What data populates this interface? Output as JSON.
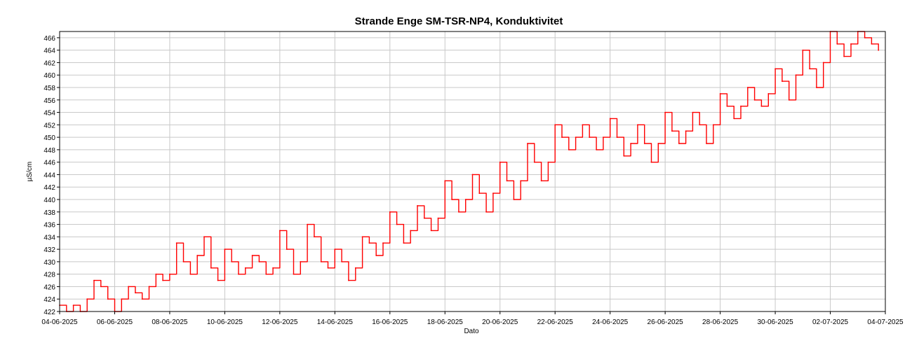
{
  "chart_data": {
    "type": "line",
    "title": "Strande Enge SM-TSR-NP4, Konduktivitet",
    "xlabel": "Dato",
    "ylabel": "µS/cm",
    "x_range": [
      "04-06-2025",
      "04-07-2025"
    ],
    "ylim": [
      422,
      467
    ],
    "grid": true,
    "legend": "none",
    "x_ticks": [
      "04-06-2025",
      "06-06-2025",
      "08-06-2025",
      "10-06-2025",
      "12-06-2025",
      "14-06-2025",
      "16-06-2025",
      "18-06-2025",
      "20-06-2025",
      "22-06-2025",
      "24-06-2025",
      "26-06-2025",
      "28-06-2025",
      "30-06-2025",
      "02-07-2025",
      "04-07-2025"
    ],
    "y_ticks": [
      422,
      424,
      426,
      428,
      430,
      432,
      434,
      436,
      438,
      440,
      442,
      444,
      446,
      448,
      450,
      452,
      454,
      456,
      458,
      460,
      462,
      464,
      466
    ],
    "series": [
      {
        "color": "#ff0000",
        "points": [
          [
            "04-06-2025 00:00",
            423
          ],
          [
            "04-06-2025 06:00",
            422
          ],
          [
            "04-06-2025 12:00",
            423
          ],
          [
            "04-06-2025 18:00",
            422
          ],
          [
            "05-06-2025 00:00",
            424
          ],
          [
            "05-06-2025 06:00",
            427
          ],
          [
            "05-06-2025 12:00",
            426
          ],
          [
            "05-06-2025 18:00",
            424
          ],
          [
            "06-06-2025 00:00",
            422
          ],
          [
            "06-06-2025 06:00",
            424
          ],
          [
            "06-06-2025 12:00",
            426
          ],
          [
            "06-06-2025 18:00",
            425
          ],
          [
            "07-06-2025 00:00",
            424
          ],
          [
            "07-06-2025 06:00",
            426
          ],
          [
            "07-06-2025 12:00",
            428
          ],
          [
            "07-06-2025 18:00",
            427
          ],
          [
            "08-06-2025 00:00",
            428
          ],
          [
            "08-06-2025 06:00",
            433
          ],
          [
            "08-06-2025 12:00",
            430
          ],
          [
            "08-06-2025 18:00",
            428
          ],
          [
            "09-06-2025 00:00",
            431
          ],
          [
            "09-06-2025 06:00",
            434
          ],
          [
            "09-06-2025 12:00",
            429
          ],
          [
            "09-06-2025 18:00",
            427
          ],
          [
            "10-06-2025 00:00",
            432
          ],
          [
            "10-06-2025 06:00",
            430
          ],
          [
            "10-06-2025 12:00",
            428
          ],
          [
            "10-06-2025 18:00",
            429
          ],
          [
            "11-06-2025 00:00",
            431
          ],
          [
            "11-06-2025 06:00",
            430
          ],
          [
            "11-06-2025 12:00",
            428
          ],
          [
            "11-06-2025 18:00",
            429
          ],
          [
            "12-06-2025 00:00",
            435
          ],
          [
            "12-06-2025 06:00",
            432
          ],
          [
            "12-06-2025 12:00",
            428
          ],
          [
            "12-06-2025 18:00",
            430
          ],
          [
            "13-06-2025 00:00",
            436
          ],
          [
            "13-06-2025 06:00",
            434
          ],
          [
            "13-06-2025 12:00",
            430
          ],
          [
            "13-06-2025 18:00",
            429
          ],
          [
            "14-06-2025 00:00",
            432
          ],
          [
            "14-06-2025 06:00",
            430
          ],
          [
            "14-06-2025 12:00",
            427
          ],
          [
            "14-06-2025 18:00",
            429
          ],
          [
            "15-06-2025 00:00",
            434
          ],
          [
            "15-06-2025 06:00",
            433
          ],
          [
            "15-06-2025 12:00",
            431
          ],
          [
            "15-06-2025 18:00",
            433
          ],
          [
            "16-06-2025 00:00",
            438
          ],
          [
            "16-06-2025 06:00",
            436
          ],
          [
            "16-06-2025 12:00",
            433
          ],
          [
            "16-06-2025 18:00",
            435
          ],
          [
            "17-06-2025 00:00",
            439
          ],
          [
            "17-06-2025 06:00",
            437
          ],
          [
            "17-06-2025 12:00",
            435
          ],
          [
            "17-06-2025 18:00",
            437
          ],
          [
            "18-06-2025 00:00",
            443
          ],
          [
            "18-06-2025 06:00",
            440
          ],
          [
            "18-06-2025 12:00",
            438
          ],
          [
            "18-06-2025 18:00",
            440
          ],
          [
            "19-06-2025 00:00",
            444
          ],
          [
            "19-06-2025 06:00",
            441
          ],
          [
            "19-06-2025 12:00",
            438
          ],
          [
            "19-06-2025 18:00",
            441
          ],
          [
            "20-06-2025 00:00",
            446
          ],
          [
            "20-06-2025 06:00",
            443
          ],
          [
            "20-06-2025 12:00",
            440
          ],
          [
            "20-06-2025 18:00",
            443
          ],
          [
            "21-06-2025 00:00",
            449
          ],
          [
            "21-06-2025 06:00",
            446
          ],
          [
            "21-06-2025 12:00",
            443
          ],
          [
            "21-06-2025 18:00",
            446
          ],
          [
            "22-06-2025 00:00",
            452
          ],
          [
            "22-06-2025 06:00",
            450
          ],
          [
            "22-06-2025 12:00",
            448
          ],
          [
            "22-06-2025 18:00",
            450
          ],
          [
            "23-06-2025 00:00",
            452
          ],
          [
            "23-06-2025 06:00",
            450
          ],
          [
            "23-06-2025 12:00",
            448
          ],
          [
            "23-06-2025 18:00",
            450
          ],
          [
            "24-06-2025 00:00",
            453
          ],
          [
            "24-06-2025 06:00",
            450
          ],
          [
            "24-06-2025 12:00",
            447
          ],
          [
            "24-06-2025 18:00",
            449
          ],
          [
            "25-06-2025 00:00",
            452
          ],
          [
            "25-06-2025 06:00",
            449
          ],
          [
            "25-06-2025 12:00",
            446
          ],
          [
            "25-06-2025 18:00",
            449
          ],
          [
            "26-06-2025 00:00",
            454
          ],
          [
            "26-06-2025 06:00",
            451
          ],
          [
            "26-06-2025 12:00",
            449
          ],
          [
            "26-06-2025 18:00",
            451
          ],
          [
            "27-06-2025 00:00",
            454
          ],
          [
            "27-06-2025 06:00",
            452
          ],
          [
            "27-06-2025 12:00",
            449
          ],
          [
            "27-06-2025 18:00",
            452
          ],
          [
            "28-06-2025 00:00",
            457
          ],
          [
            "28-06-2025 06:00",
            455
          ],
          [
            "28-06-2025 12:00",
            453
          ],
          [
            "28-06-2025 18:00",
            455
          ],
          [
            "29-06-2025 00:00",
            458
          ],
          [
            "29-06-2025 06:00",
            456
          ],
          [
            "29-06-2025 12:00",
            455
          ],
          [
            "29-06-2025 18:00",
            457
          ],
          [
            "30-06-2025 00:00",
            461
          ],
          [
            "30-06-2025 06:00",
            459
          ],
          [
            "30-06-2025 12:00",
            456
          ],
          [
            "30-06-2025 18:00",
            460
          ],
          [
            "01-07-2025 00:00",
            464
          ],
          [
            "01-07-2025 06:00",
            461
          ],
          [
            "01-07-2025 12:00",
            458
          ],
          [
            "01-07-2025 18:00",
            462
          ],
          [
            "02-07-2025 00:00",
            467
          ],
          [
            "02-07-2025 06:00",
            465
          ],
          [
            "02-07-2025 12:00",
            463
          ],
          [
            "02-07-2025 18:00",
            465
          ],
          [
            "03-07-2025 00:00",
            467
          ],
          [
            "03-07-2025 06:00",
            466
          ],
          [
            "03-07-2025 12:00",
            465
          ],
          [
            "03-07-2025 18:00",
            464
          ]
        ]
      }
    ]
  }
}
